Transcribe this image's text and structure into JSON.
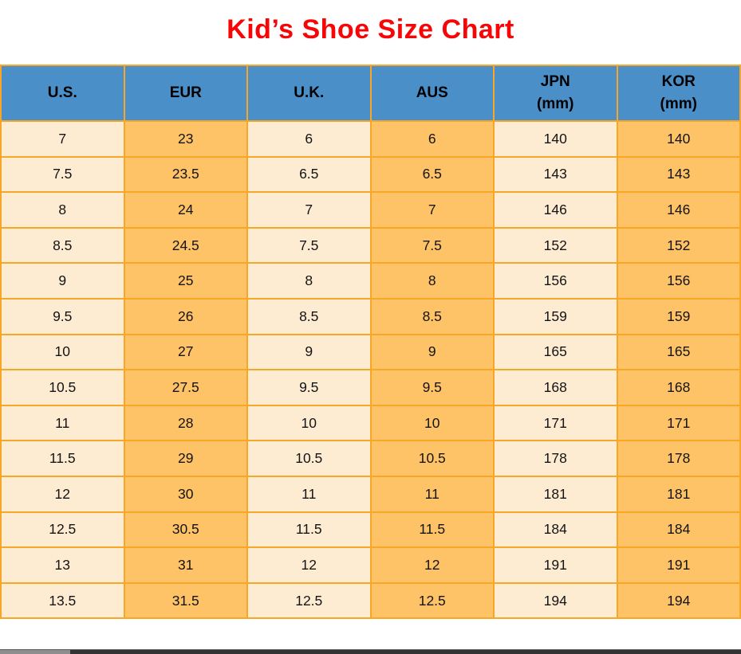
{
  "page": {
    "title": "Kid’s Shoe Size Chart"
  },
  "colors": {
    "title_red": "#f60606",
    "header_blue": "#4a8fc7",
    "column_light": "#fdebd2",
    "column_orange": "#fec267",
    "grid_orange": "#f7a625",
    "scrollbar_track": "#333333",
    "scrollbar_thumb": "#8e8e8e"
  },
  "table": {
    "headers": [
      {
        "label": "U.S.",
        "sub": ""
      },
      {
        "label": "EUR",
        "sub": ""
      },
      {
        "label": "U.K.",
        "sub": ""
      },
      {
        "label": "AUS",
        "sub": ""
      },
      {
        "label": "JPN",
        "sub": "(mm)"
      },
      {
        "label": "KOR",
        "sub": "(mm)"
      }
    ],
    "rows": [
      [
        "7",
        "23",
        "6",
        "6",
        "140",
        "140"
      ],
      [
        "7.5",
        "23.5",
        "6.5",
        "6.5",
        "143",
        "143"
      ],
      [
        "8",
        "24",
        "7",
        "7",
        "146",
        "146"
      ],
      [
        "8.5",
        "24.5",
        "7.5",
        "7.5",
        "152",
        "152"
      ],
      [
        "9",
        "25",
        "8",
        "8",
        "156",
        "156"
      ],
      [
        "9.5",
        "26",
        "8.5",
        "8.5",
        "159",
        "159"
      ],
      [
        "10",
        "27",
        "9",
        "9",
        "165",
        "165"
      ],
      [
        "10.5",
        "27.5",
        "9.5",
        "9.5",
        "168",
        "168"
      ],
      [
        "11",
        "28",
        "10",
        "10",
        "171",
        "171"
      ],
      [
        "11.5",
        "29",
        "10.5",
        "10.5",
        "178",
        "178"
      ],
      [
        "12",
        "30",
        "11",
        "11",
        "181",
        "181"
      ],
      [
        "12.5",
        "30.5",
        "11.5",
        "11.5",
        "184",
        "184"
      ],
      [
        "13",
        "31",
        "12",
        "12",
        "191",
        "191"
      ],
      [
        "13.5",
        "31.5",
        "12.5",
        "12.5",
        "194",
        "194"
      ]
    ]
  },
  "chart_data": {
    "type": "table",
    "title": "Kid’s Shoe Size Chart",
    "columns": [
      "U.S.",
      "EUR",
      "U.K.",
      "AUS",
      "JPN (mm)",
      "KOR (mm)"
    ],
    "rows": [
      [
        7,
        23,
        6,
        6,
        140,
        140
      ],
      [
        7.5,
        23.5,
        6.5,
        6.5,
        143,
        143
      ],
      [
        8,
        24,
        7,
        7,
        146,
        146
      ],
      [
        8.5,
        24.5,
        7.5,
        7.5,
        152,
        152
      ],
      [
        9,
        25,
        8,
        8,
        156,
        156
      ],
      [
        9.5,
        26,
        8.5,
        8.5,
        159,
        159
      ],
      [
        10,
        27,
        9,
        9,
        165,
        165
      ],
      [
        10.5,
        27.5,
        9.5,
        9.5,
        168,
        168
      ],
      [
        11,
        28,
        10,
        10,
        171,
        171
      ],
      [
        11.5,
        29,
        10.5,
        10.5,
        178,
        178
      ],
      [
        12,
        30,
        11,
        11,
        181,
        181
      ],
      [
        12.5,
        30.5,
        11.5,
        11.5,
        184,
        184
      ],
      [
        13,
        31,
        12,
        12,
        191,
        191
      ],
      [
        13.5,
        31.5,
        12.5,
        12.5,
        194,
        194
      ]
    ]
  }
}
